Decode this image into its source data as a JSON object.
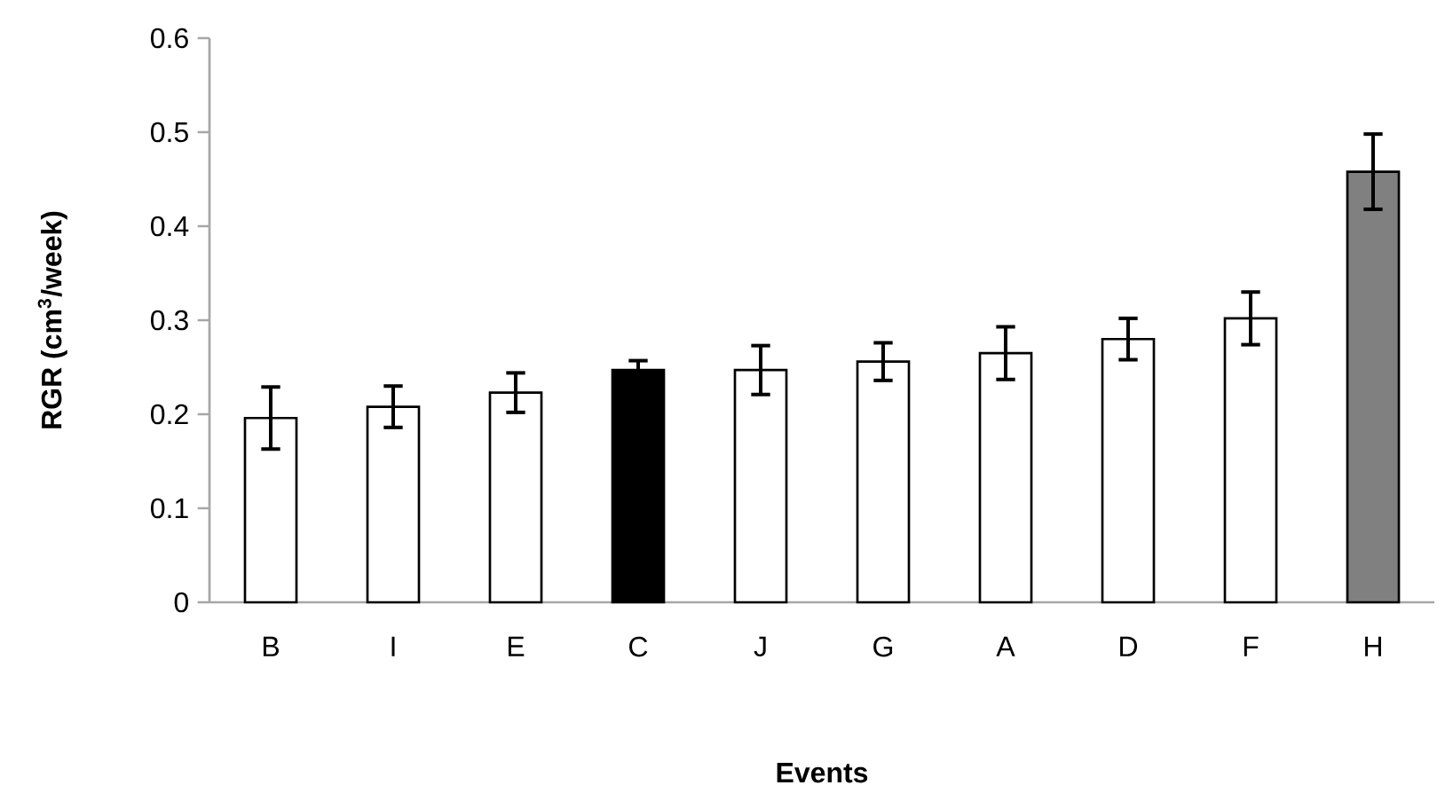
{
  "chart_data": {
    "type": "bar",
    "xlabel": "Events",
    "ylabel": "RGR (cm$^{3}$/week)",
    "categories": [
      "B",
      "I",
      "E",
      "C",
      "J",
      "G",
      "A",
      "D",
      "F",
      "H"
    ],
    "values": [
      0.196,
      0.208,
      0.223,
      0.247,
      0.247,
      0.256,
      0.265,
      0.28,
      0.302,
      0.458
    ],
    "errors": [
      0.033,
      0.022,
      0.021,
      0.01,
      0.026,
      0.02,
      0.028,
      0.022,
      0.028,
      0.04
    ],
    "colors": [
      "#ffffff",
      "#ffffff",
      "#ffffff",
      "#000000",
      "#ffffff",
      "#ffffff",
      "#ffffff",
      "#ffffff",
      "#ffffff",
      "#808080"
    ],
    "ylim": [
      0,
      0.6
    ],
    "yticks": [
      0,
      0.1,
      0.2,
      0.3,
      0.4,
      0.5,
      0.6
    ]
  }
}
